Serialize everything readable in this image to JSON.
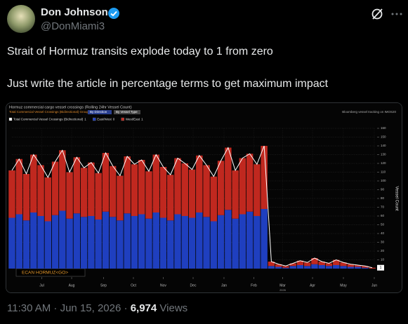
{
  "post": {
    "author": "Don Johnson",
    "handle": "@DonMiami3",
    "text": [
      "Strait of Hormuz transits explode today to 1 from zero",
      "Just write the article in percentage terms to get maximum impact"
    ],
    "timestamp": "11:30 AM · Jun 15, 2026",
    "views": "6,974",
    "views_label": "Views"
  },
  "chart_data": {
    "type": "bar",
    "stacked": true,
    "title": "Hormuz commercial cargo vessel crossings (Rolling 24hr Vessel Count)",
    "subtitle": "Total Commercial Vessel Crossings (Bidirectional)  Group by",
    "buttons": [
      "By Direction",
      "By Vessel Type"
    ],
    "source": "Bloomberg vessel tracking on IMOS20",
    "ticker": "ECAN HORMUZ<GO>",
    "ylabel": "Vessel Count",
    "year_label": "2026",
    "x": [
      0,
      7,
      14,
      21,
      28,
      35,
      42,
      49,
      56,
      63,
      70,
      77,
      84,
      91,
      98,
      105,
      112,
      119,
      126,
      133,
      140,
      147,
      154,
      161,
      168,
      175,
      182,
      189,
      196,
      203,
      210,
      217,
      224,
      231,
      238,
      245,
      252,
      259,
      266,
      273,
      280,
      287,
      294,
      301,
      308,
      315,
      322,
      329,
      336,
      343,
      350
    ],
    "xlim": [
      0,
      352
    ],
    "xticks": [
      {
        "value": 29,
        "label": "Jul"
      },
      {
        "value": 58,
        "label": "Aug"
      },
      {
        "value": 89,
        "label": "Sep"
      },
      {
        "value": 118,
        "label": "Oct"
      },
      {
        "value": 147,
        "label": "Nov"
      },
      {
        "value": 176,
        "label": "Dec"
      },
      {
        "value": 206,
        "label": "Jan"
      },
      {
        "value": 235,
        "label": "Feb"
      },
      {
        "value": 263,
        "label": "Mar"
      },
      {
        "value": 292,
        "label": "Apr"
      },
      {
        "value": 322,
        "label": "May"
      },
      {
        "value": 352,
        "label": "Jun"
      }
    ],
    "ylim": [
      0,
      160
    ],
    "yticks": [
      0,
      10,
      20,
      30,
      40,
      50,
      60,
      70,
      80,
      90,
      100,
      110,
      120,
      130,
      140,
      150,
      160
    ],
    "grid": true,
    "series": [
      {
        "name": "Total Commercial Vessel Crossings (Bidirectional)",
        "type": "line",
        "color": "#ffffff",
        "values": [
          112,
          125,
          108,
          130,
          118,
          104,
          122,
          135,
          110,
          127,
          115,
          121,
          109,
          132,
          117,
          106,
          128,
          119,
          124,
          111,
          130,
          116,
          107,
          126,
          120,
          113,
          129,
          118,
          105,
          123,
          138,
          112,
          126,
          131,
          119,
          140,
          8,
          5,
          3,
          6,
          9,
          7,
          12,
          8,
          6,
          10,
          7,
          5,
          4,
          3,
          1
        ]
      },
      {
        "name": "East/West",
        "type": "bar",
        "color": "#1f3fbf",
        "values": [
          58,
          62,
          55,
          64,
          60,
          54,
          61,
          66,
          57,
          63,
          59,
          60,
          56,
          65,
          59,
          55,
          63,
          60,
          62,
          57,
          64,
          58,
          55,
          62,
          60,
          58,
          64,
          59,
          54,
          61,
          67,
          57,
          62,
          65,
          60,
          68,
          3,
          2,
          1,
          3,
          4,
          3,
          5,
          4,
          3,
          4,
          3,
          2,
          2,
          1,
          0
        ]
      },
      {
        "name": "West/East",
        "type": "bar",
        "color": "#c0281f",
        "values": [
          54,
          63,
          53,
          66,
          58,
          50,
          61,
          69,
          53,
          64,
          56,
          61,
          53,
          67,
          58,
          51,
          65,
          59,
          62,
          54,
          66,
          58,
          52,
          64,
          60,
          55,
          65,
          59,
          51,
          62,
          71,
          55,
          64,
          66,
          59,
          72,
          5,
          3,
          2,
          3,
          5,
          4,
          7,
          4,
          3,
          6,
          4,
          3,
          2,
          2,
          1
        ]
      }
    ]
  }
}
